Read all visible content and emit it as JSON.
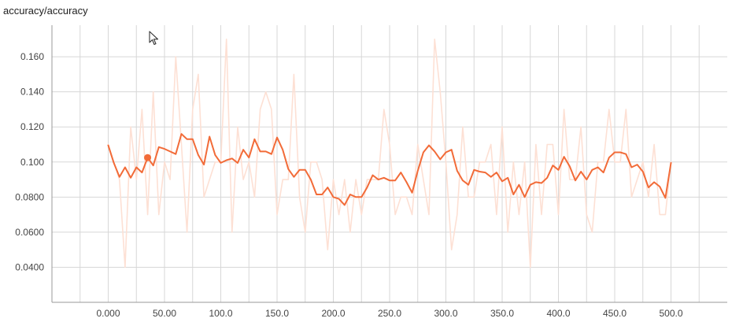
{
  "title": "accuracy/accuracy",
  "colors": {
    "smoothed": "#f26b38",
    "raw": "#fde0d4",
    "grid": "#d7d7d7",
    "axis": "#999999",
    "text": "#444444"
  },
  "chart_data": {
    "type": "line",
    "title": "accuracy/accuracy",
    "xlabel": "",
    "ylabel": "",
    "xlim": [
      -50,
      550
    ],
    "ylim": [
      0.02,
      0.178
    ],
    "x_ticks": [
      0,
      50,
      100,
      150,
      200,
      250,
      300,
      350,
      400,
      450,
      500
    ],
    "x_tick_labels": [
      "0.000",
      "50.00",
      "100.0",
      "150.0",
      "200.0",
      "250.0",
      "300.0",
      "350.0",
      "400.0",
      "450.0",
      "500.0"
    ],
    "y_ticks": [
      0.04,
      0.06,
      0.08,
      0.1,
      0.12,
      0.14,
      0.16
    ],
    "y_tick_labels": [
      "0.0400",
      "0.0600",
      "0.0800",
      "0.100",
      "0.120",
      "0.140",
      "0.160"
    ],
    "grid": true,
    "x": [
      0,
      5,
      10,
      15,
      20,
      25,
      30,
      35,
      40,
      45,
      50,
      55,
      60,
      65,
      70,
      75,
      80,
      85,
      90,
      95,
      100,
      105,
      110,
      115,
      120,
      125,
      130,
      135,
      140,
      145,
      150,
      155,
      160,
      165,
      170,
      175,
      180,
      185,
      190,
      195,
      200,
      205,
      210,
      215,
      220,
      225,
      230,
      235,
      240,
      245,
      250,
      255,
      260,
      265,
      270,
      275,
      280,
      285,
      290,
      295,
      300,
      305,
      310,
      315,
      320,
      325,
      330,
      335,
      340,
      345,
      350,
      355,
      360,
      365,
      370,
      375,
      380,
      385,
      390,
      395,
      400,
      405,
      410,
      415,
      420,
      425,
      430,
      435,
      440,
      445,
      450,
      455,
      460,
      465,
      470,
      475,
      480,
      485,
      490,
      495,
      500
    ],
    "series": [
      {
        "name": "raw",
        "values": [
          0.11,
          0.1,
          0.09,
          0.04,
          0.12,
          0.09,
          0.13,
          0.07,
          0.14,
          0.07,
          0.1,
          0.09,
          0.16,
          0.11,
          0.06,
          0.13,
          0.15,
          0.08,
          0.09,
          0.1,
          0.1,
          0.17,
          0.06,
          0.12,
          0.09,
          0.1,
          0.08,
          0.13,
          0.14,
          0.13,
          0.07,
          0.09,
          0.09,
          0.15,
          0.08,
          0.06,
          0.1,
          0.1,
          0.09,
          0.05,
          0.09,
          0.07,
          0.09,
          0.06,
          0.09,
          0.07,
          0.09,
          0.09,
          0.09,
          0.13,
          0.11,
          0.07,
          0.08,
          0.08,
          0.07,
          0.11,
          0.09,
          0.07,
          0.17,
          0.14,
          0.1,
          0.05,
          0.07,
          0.12,
          0.08,
          0.08,
          0.1,
          0.1,
          0.11,
          0.07,
          0.12,
          0.06,
          0.1,
          0.07,
          0.1,
          0.04,
          0.11,
          0.07,
          0.11,
          0.11,
          0.07,
          0.13,
          0.09,
          0.09,
          0.12,
          0.07,
          0.06,
          0.1,
          0.1,
          0.13,
          0.1,
          0.1,
          0.13,
          0.08,
          0.09,
          0.1,
          0.08,
          0.11,
          0.07,
          0.07,
          0.1
        ]
      },
      {
        "name": "smoothed",
        "values": [
          0.1095,
          0.0995,
          0.0915,
          0.097,
          0.091,
          0.097,
          0.094,
          0.1025,
          0.098,
          0.1085,
          0.1075,
          0.106,
          0.1045,
          0.116,
          0.113,
          0.113,
          0.104,
          0.0985,
          0.1145,
          0.104,
          0.0995,
          0.101,
          0.102,
          0.0995,
          0.107,
          0.1025,
          0.113,
          0.106,
          0.106,
          0.1045,
          0.114,
          0.107,
          0.096,
          0.0915,
          0.0955,
          0.0955,
          0.09,
          0.0815,
          0.0815,
          0.0855,
          0.08,
          0.079,
          0.0755,
          0.0815,
          0.08,
          0.08,
          0.0855,
          0.0925,
          0.09,
          0.091,
          0.0895,
          0.0895,
          0.094,
          0.0885,
          0.0825,
          0.095,
          0.1055,
          0.1095,
          0.106,
          0.1015,
          0.1055,
          0.107,
          0.095,
          0.0895,
          0.087,
          0.0955,
          0.0945,
          0.094,
          0.0915,
          0.094,
          0.089,
          0.091,
          0.0815,
          0.087,
          0.08,
          0.087,
          0.0885,
          0.088,
          0.091,
          0.098,
          0.0955,
          0.103,
          0.0975,
          0.0895,
          0.0945,
          0.09,
          0.0955,
          0.097,
          0.094,
          0.1025,
          0.1055,
          0.1055,
          0.1045,
          0.097,
          0.0985,
          0.0945,
          0.0855,
          0.0885,
          0.086,
          0.0795,
          0.0995
        ]
      }
    ],
    "highlight_point": {
      "x": 35,
      "y": 0.1025
    }
  }
}
